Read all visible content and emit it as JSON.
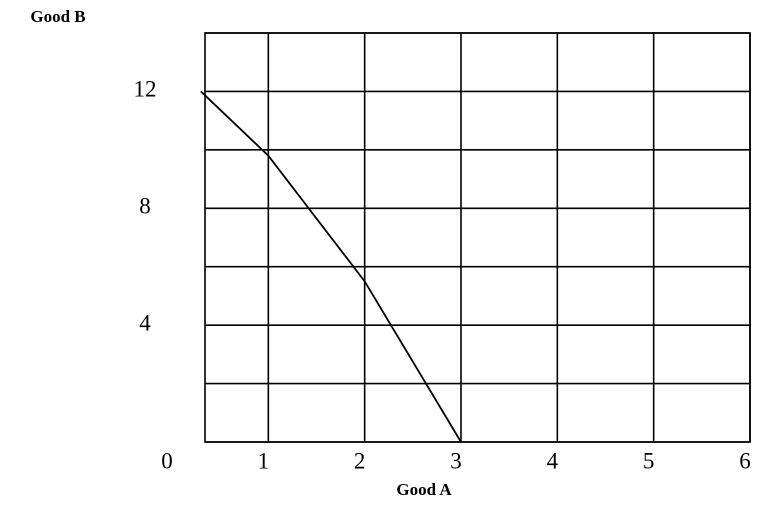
{
  "chart_data": {
    "type": "line",
    "x_label": "Good A",
    "y_label": "Good B",
    "x": [
      0.3,
      1,
      2,
      3
    ],
    "series": [
      {
        "color": "#000000",
        "values": [
          12,
          9.8,
          5.5,
          0
        ]
      }
    ],
    "xlim": [
      0,
      6
    ],
    "xticks": [
      0,
      1,
      2,
      3,
      4,
      5,
      6
    ],
    "ylim": [
      0,
      14
    ],
    "yticks": [
      4,
      8,
      12
    ],
    "ygrid": [
      0,
      2,
      4,
      6,
      8,
      10,
      12,
      14
    ],
    "grid": true
  }
}
